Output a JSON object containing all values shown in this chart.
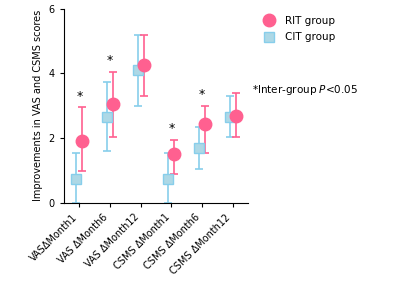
{
  "categories": [
    "VASΔMonth1",
    "VAS ΔMonth6",
    "VAS ΔMonth12",
    "CSMS ΔMonth1",
    "CSMS ΔMonth6",
    "CSMS ΔMonth12"
  ],
  "RIT_mean": [
    1.9,
    3.05,
    4.25,
    1.5,
    2.45,
    2.7
  ],
  "RIT_lower": [
    1.0,
    2.05,
    3.3,
    0.9,
    1.55,
    2.05
  ],
  "RIT_upper": [
    2.95,
    4.05,
    5.2,
    1.95,
    3.0,
    3.4
  ],
  "CIT_mean": [
    0.75,
    2.65,
    4.1,
    0.75,
    1.7,
    2.65
  ],
  "CIT_lower": [
    0.0,
    1.6,
    3.0,
    0.0,
    1.05,
    2.05
  ],
  "CIT_upper": [
    1.55,
    3.75,
    5.2,
    1.55,
    2.35,
    3.3
  ],
  "significant": [
    true,
    true,
    false,
    true,
    true,
    false
  ],
  "ylabel": "Improvements in VAS and CSMS scores",
  "ylim": [
    0,
    6
  ],
  "yticks": [
    0,
    2,
    4,
    6
  ],
  "RIT_color": "#FF6090",
  "CIT_color": "#87CEEB",
  "CIT_face": "#ADD8E6",
  "bg_color": "#FFFFFF",
  "legend_RIT": "RIT group",
  "legend_CIT": "CIT group",
  "annotation_star": "*",
  "annotation_text": "Inter-group ",
  "annotation_p": "P",
  "annotation_rest": "<0.05"
}
